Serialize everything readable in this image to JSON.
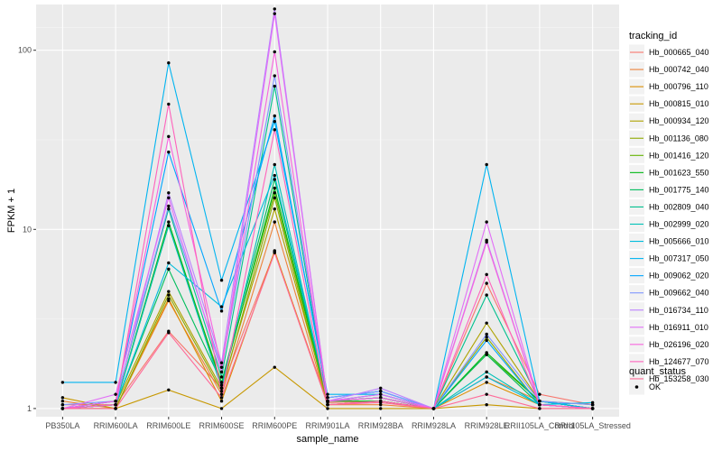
{
  "chart_data": {
    "type": "line",
    "y_scale": "log10",
    "ylim": [
      0.9,
      180
    ],
    "ylabel": "FPKM + 1",
    "xlabel": "sample_name",
    "y_ticks": [
      1,
      10,
      100
    ],
    "y_tick_labels": [
      "1",
      "10",
      "100"
    ],
    "categories": [
      "PB350LA",
      "RRIM600LA",
      "RRIM600LE",
      "RRIM600SE",
      "RRIM600PE",
      "RRIM901LA",
      "RRIM928BA",
      "RRIM928LA",
      "RRIM928LE",
      "RRII105LA_Control",
      "RRII105LA_Stressed"
    ],
    "legend": {
      "title": "tracking_id",
      "position": "right"
    },
    "legend2": {
      "title": "quant_status",
      "items": [
        "OK"
      ]
    },
    "background": "#ebebeb",
    "grid": true,
    "series": [
      {
        "name": "Hb_000665_040",
        "color": "#F8766D",
        "values": [
          1.05,
          1.05,
          2.7,
          1.3,
          7.5,
          1.08,
          1.1,
          1.0,
          5.0,
          1.2,
          1.05
        ]
      },
      {
        "name": "Hb_000742_040",
        "color": "#EC8239",
        "values": [
          1.1,
          1.0,
          4.0,
          1.2,
          11.0,
          1.05,
          1.05,
          1.0,
          1.5,
          1.1,
          1.0
        ]
      },
      {
        "name": "Hb_000796_110",
        "color": "#DB8E00",
        "values": [
          1.0,
          1.0,
          4.1,
          1.1,
          7.6,
          1.05,
          1.1,
          1.0,
          1.4,
          1.05,
          1.0
        ]
      },
      {
        "name": "Hb_000815_010",
        "color": "#C79800",
        "values": [
          1.15,
          1.0,
          1.27,
          1.0,
          1.7,
          1.0,
          1.0,
          1.0,
          1.05,
          1.0,
          1.0
        ]
      },
      {
        "name": "Hb_000934_120",
        "color": "#AEA200",
        "values": [
          1.0,
          1.05,
          4.5,
          1.3,
          13.0,
          1.1,
          1.15,
          1.0,
          3.0,
          1.1,
          1.05
        ]
      },
      {
        "name": "Hb_001136_080",
        "color": "#8FAA00",
        "values": [
          1.0,
          1.0,
          4.3,
          1.25,
          15.0,
          1.05,
          1.1,
          1.0,
          2.5,
          1.05,
          1.0
        ]
      },
      {
        "name": "Hb_001416_120",
        "color": "#64B200",
        "values": [
          1.0,
          1.05,
          10.5,
          1.4,
          16.0,
          1.1,
          1.15,
          1.0,
          2.0,
          1.1,
          1.0
        ]
      },
      {
        "name": "Hb_001623_550",
        "color": "#00B813",
        "values": [
          1.0,
          1.05,
          11.0,
          1.35,
          17.0,
          1.1,
          1.1,
          1.0,
          2.05,
          1.1,
          1.0
        ]
      },
      {
        "name": "Hb_001775_140",
        "color": "#00BD5C",
        "values": [
          1.0,
          1.05,
          6.0,
          1.4,
          19.0,
          1.1,
          1.15,
          1.0,
          2.0,
          1.05,
          1.0
        ]
      },
      {
        "name": "Hb_002809_040",
        "color": "#00C08E",
        "values": [
          1.0,
          1.1,
          13.0,
          1.5,
          63.0,
          1.1,
          1.2,
          1.0,
          4.3,
          1.1,
          1.0
        ]
      },
      {
        "name": "Hb_002999_020",
        "color": "#00C1B7",
        "values": [
          1.0,
          1.05,
          10.5,
          1.3,
          23.0,
          1.1,
          1.15,
          1.0,
          1.6,
          1.05,
          1.0
        ]
      },
      {
        "name": "Hb_005666_010",
        "color": "#00BDDC",
        "values": [
          1.0,
          1.05,
          6.5,
          3.7,
          20.0,
          1.15,
          1.25,
          1.0,
          1.5,
          1.05,
          1.08
        ]
      },
      {
        "name": "Hb_007317_050",
        "color": "#00B4F0",
        "values": [
          1.4,
          1.4,
          85.0,
          5.2,
          40.0,
          1.2,
          1.2,
          1.0,
          23.0,
          1.1,
          1.0
        ]
      },
      {
        "name": "Hb_009062_020",
        "color": "#00A5FF",
        "values": [
          1.0,
          1.1,
          27.0,
          3.5,
          43.0,
          1.15,
          1.25,
          1.0,
          2.4,
          1.05,
          1.0
        ]
      },
      {
        "name": "Hb_009662_040",
        "color": "#7F96FF",
        "values": [
          1.05,
          1.1,
          13.5,
          1.7,
          72.0,
          1.15,
          1.25,
          1.0,
          2.6,
          1.1,
          1.05
        ]
      },
      {
        "name": "Hb_016734_110",
        "color": "#BC81FF",
        "values": [
          1.0,
          1.05,
          16.0,
          1.8,
          170.0,
          1.1,
          1.3,
          1.0,
          8.7,
          1.05,
          1.0
        ]
      },
      {
        "name": "Hb_016911_010",
        "color": "#E26EF7",
        "values": [
          1.0,
          1.2,
          15.0,
          1.6,
          160.0,
          1.1,
          1.2,
          1.0,
          11.0,
          1.05,
          1.0
        ]
      },
      {
        "name": "Hb_026196_020",
        "color": "#F863DF",
        "values": [
          1.0,
          1.1,
          33.0,
          1.7,
          98.0,
          1.1,
          1.15,
          1.0,
          8.5,
          1.05,
          1.0
        ]
      },
      {
        "name": "Hb_124677_070",
        "color": "#FF62BC",
        "values": [
          1.0,
          1.05,
          50.0,
          1.2,
          36.0,
          1.05,
          1.1,
          1.0,
          5.6,
          1.05,
          1.0
        ]
      },
      {
        "name": "Hb_153258_030",
        "color": "#FF6A98",
        "values": [
          1.0,
          1.0,
          2.65,
          1.15,
          7.4,
          1.05,
          1.08,
          1.0,
          1.2,
          1.0,
          1.0
        ]
      }
    ]
  }
}
